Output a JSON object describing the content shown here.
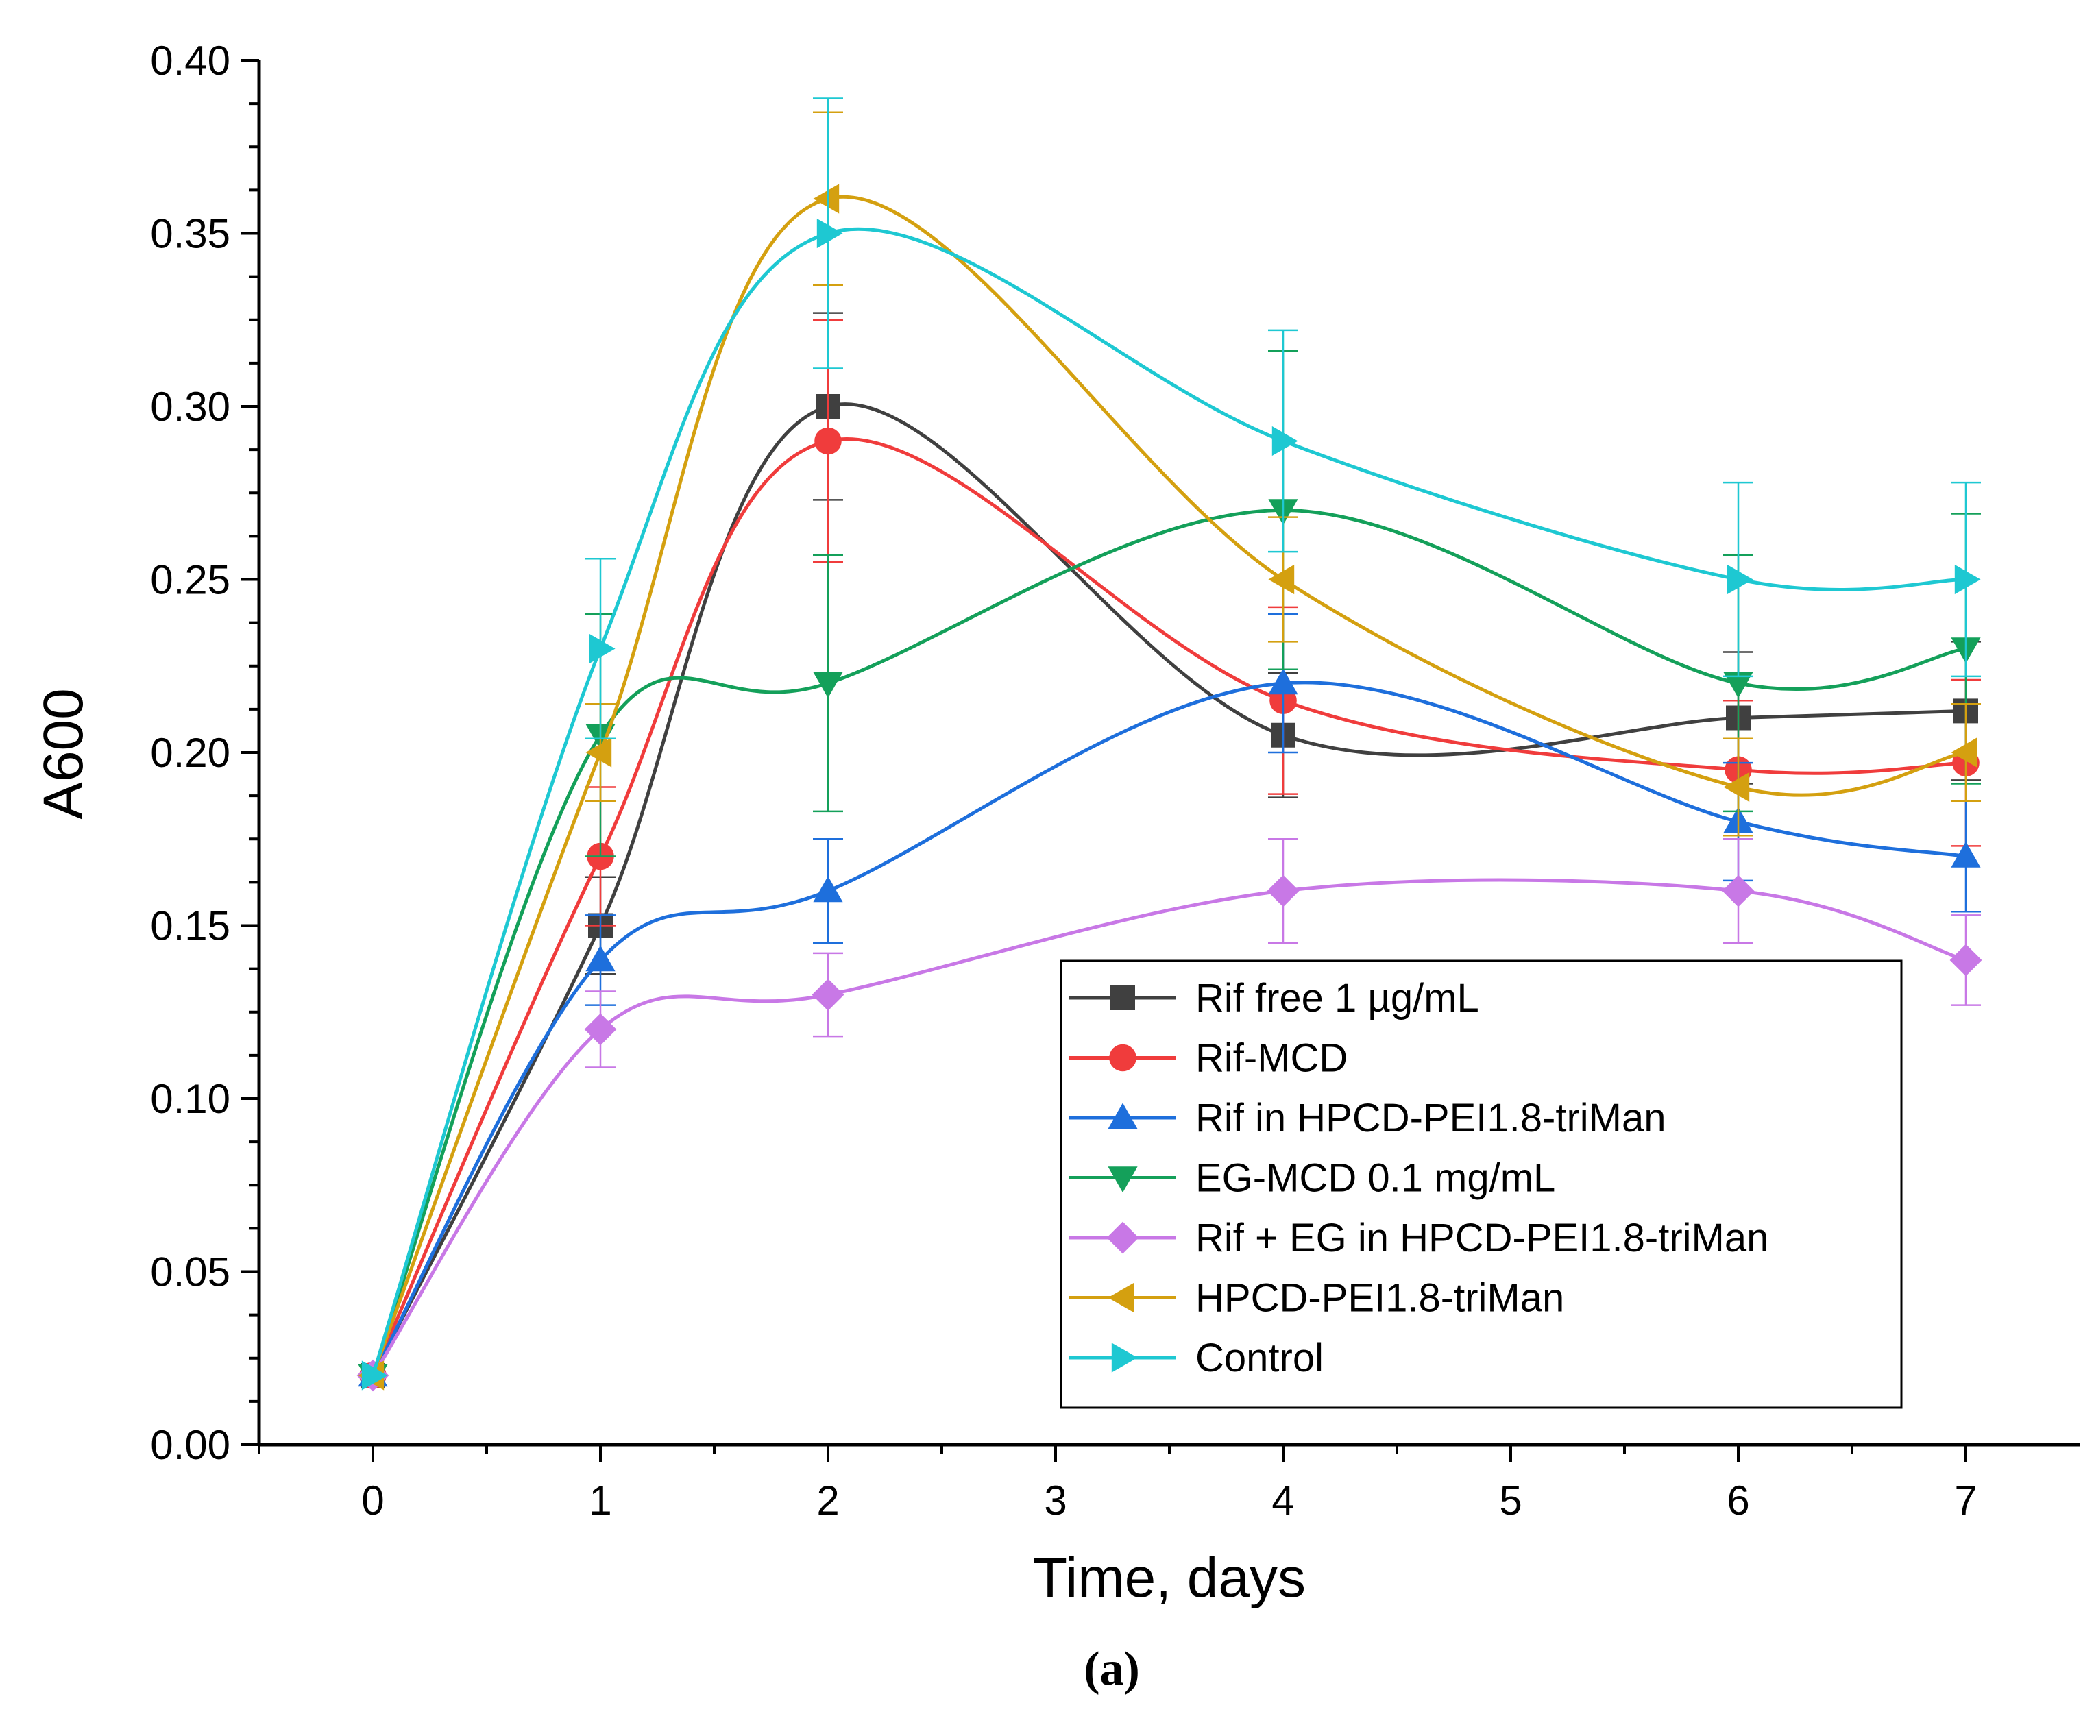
{
  "chart_data": {
    "type": "line",
    "title": "",
    "xlabel": "Time, days",
    "ylabel": "A600",
    "caption": "(a)",
    "xlim": [
      -0.5,
      7.5
    ],
    "ylim": [
      0.0,
      0.4
    ],
    "xticks": [
      0,
      1,
      2,
      3,
      4,
      5,
      6,
      7
    ],
    "yticks": [
      0.0,
      0.05,
      0.1,
      0.15,
      0.2,
      0.25,
      0.3,
      0.35,
      0.4
    ],
    "xtick_labels": [
      "0",
      "1",
      "2",
      "3",
      "4",
      "5",
      "6",
      "7"
    ],
    "ytick_labels": [
      "0.00",
      "0.05",
      "0.10",
      "0.15",
      "0.20",
      "0.25",
      "0.30",
      "0.35",
      "0.40"
    ],
    "grid": false,
    "legend_position": "bottom-right",
    "x": [
      0,
      1,
      2,
      4,
      6,
      7
    ],
    "series": [
      {
        "name": "Rif free 1 µg/mL",
        "color": "#404040",
        "marker": "square",
        "values": [
          0.02,
          0.15,
          0.3,
          0.205,
          0.21,
          0.212
        ],
        "errors": [
          0.0,
          0.014,
          0.027,
          0.018,
          0.019,
          0.02
        ]
      },
      {
        "name": "Rif-MCD",
        "color": "#f03c3c",
        "marker": "circle",
        "values": [
          0.02,
          0.17,
          0.29,
          0.215,
          0.195,
          0.197
        ],
        "errors": [
          0.0,
          0.02,
          0.035,
          0.027,
          0.02,
          0.024
        ]
      },
      {
        "name": "Rif in HPCD-PEI1.8-triMan",
        "color": "#1e6fdc",
        "marker": "triangle-up",
        "values": [
          0.02,
          0.14,
          0.16,
          0.22,
          0.18,
          0.17
        ],
        "errors": [
          0.0,
          0.013,
          0.015,
          0.02,
          0.017,
          0.016
        ]
      },
      {
        "name": "EG-MCD 0.1 mg/mL",
        "color": "#14a05a",
        "marker": "triangle-down",
        "values": [
          0.02,
          0.205,
          0.22,
          0.27,
          0.22,
          0.23
        ],
        "errors": [
          0.0,
          0.035,
          0.037,
          0.046,
          0.037,
          0.039
        ]
      },
      {
        "name": "Rif + EG in HPCD-PEI1.8-triMan",
        "color": "#c878e6",
        "marker": "diamond",
        "values": [
          0.02,
          0.12,
          0.13,
          0.16,
          0.16,
          0.14
        ],
        "errors": [
          0.0,
          0.011,
          0.012,
          0.015,
          0.015,
          0.013
        ]
      },
      {
        "name": "HPCD-PEI1.8-triMan",
        "color": "#d4a010",
        "marker": "triangle-left",
        "values": [
          0.02,
          0.2,
          0.36,
          0.25,
          0.19,
          0.2
        ],
        "errors": [
          0.0,
          0.014,
          0.025,
          0.018,
          0.014,
          0.014
        ]
      },
      {
        "name": "Control",
        "color": "#1ec8d2",
        "marker": "triangle-right",
        "values": [
          0.02,
          0.23,
          0.35,
          0.29,
          0.25,
          0.25
        ],
        "errors": [
          0.0,
          0.026,
          0.039,
          0.032,
          0.028,
          0.028
        ]
      }
    ]
  }
}
